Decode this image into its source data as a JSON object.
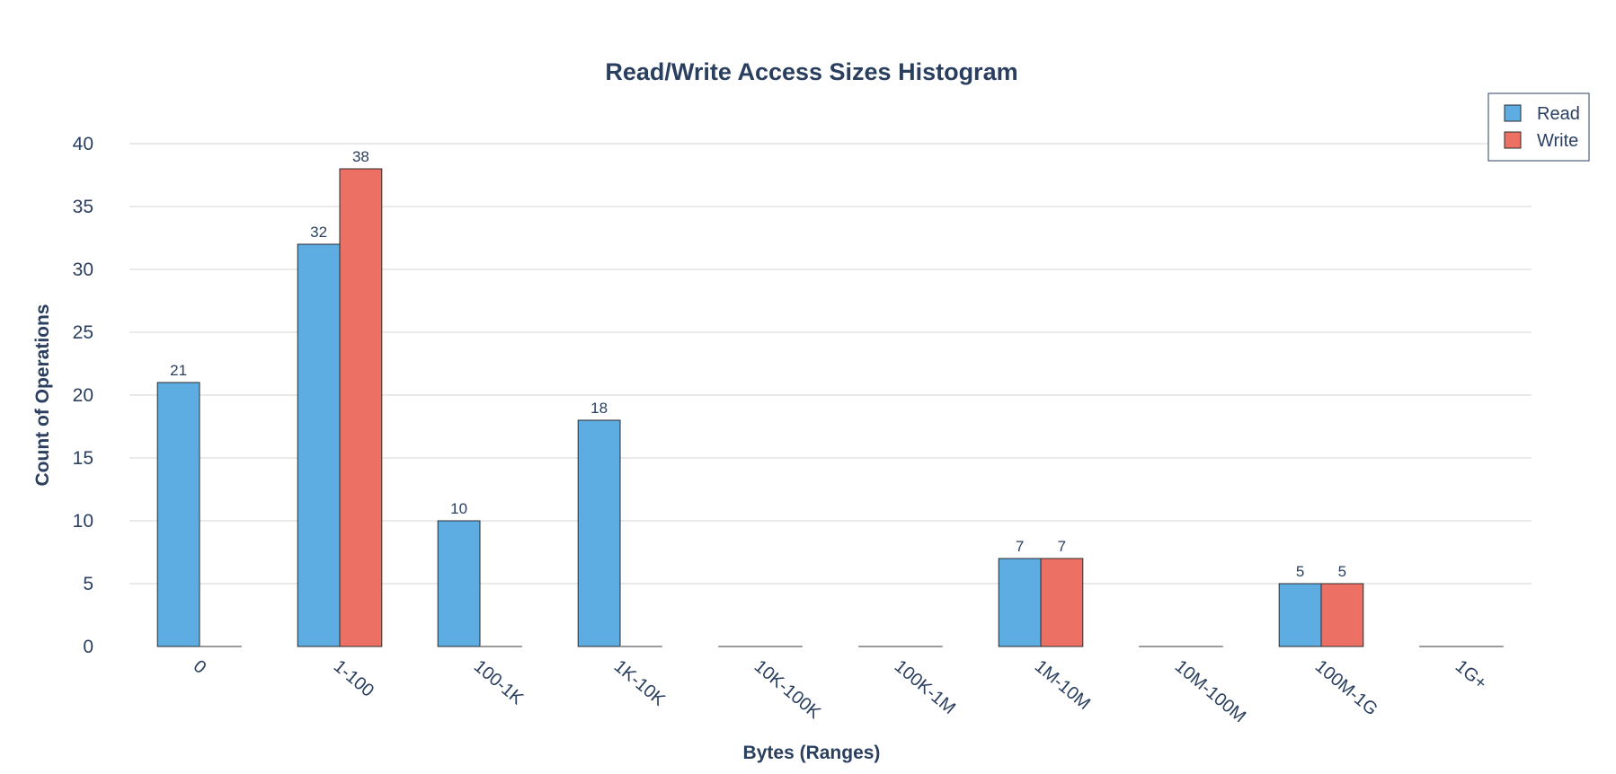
{
  "chart_data": {
    "type": "bar",
    "title": "Read/Write Access Sizes Histogram",
    "xlabel": "Bytes (Ranges)",
    "ylabel": "Count of Operations",
    "categories": [
      "0",
      "1-100",
      "100-1K",
      "1K-10K",
      "10K-100K",
      "100K-1M",
      "1M-10M",
      "10M-100M",
      "100M-1G",
      "1G+"
    ],
    "series": [
      {
        "name": "Read",
        "color": "#5dade2",
        "values": [
          21,
          32,
          10,
          18,
          0,
          0,
          7,
          0,
          5,
          0
        ]
      },
      {
        "name": "Write",
        "color": "#ec7063",
        "values": [
          0,
          38,
          0,
          0,
          0,
          0,
          7,
          0,
          5,
          0
        ]
      }
    ],
    "ylim": [
      0,
      40
    ],
    "yticks": [
      0,
      5,
      10,
      15,
      20,
      25,
      30,
      35,
      40
    ],
    "grid": true,
    "legend_position": "top-right",
    "data_labels": true
  }
}
